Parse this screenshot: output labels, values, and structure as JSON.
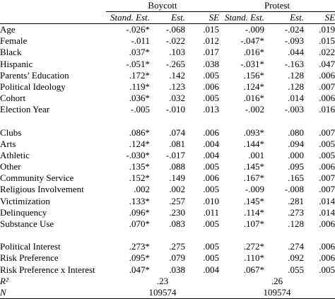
{
  "groups": {
    "boycott": "Boycott",
    "protest": "Protest"
  },
  "subheaders": [
    "Stand. Est.",
    "Est.",
    "SE",
    "Stand. Est.",
    "Est.",
    "SE"
  ],
  "block1": [
    {
      "label": "Age",
      "b_std": "-.026*",
      "b_est": "-.068",
      "b_se": ".015",
      "p_std": "-.009",
      "p_est": "-.024",
      "p_se": ".019"
    },
    {
      "label": "Female",
      "b_std": "-.011",
      "b_est": "-.022",
      "b_se": ".012",
      "p_std": "-.047*",
      "p_est": "-.093",
      "p_se": ".015"
    },
    {
      "label": "Black",
      "b_std": ".037*",
      "b_est": ".103",
      "b_se": ".017",
      "p_std": ".016*",
      "p_est": ".044",
      "p_se": ".022"
    },
    {
      "label": "Hispanic",
      "b_std": "-.051*",
      "b_est": "-.265",
      "b_se": ".038",
      "p_std": "-.031*",
      "p_est": "-.163",
      "p_se": ".047"
    },
    {
      "label": "Parents’ Education",
      "b_std": ".172*",
      "b_est": ".142",
      "b_se": ".005",
      "p_std": ".156*",
      "p_est": ".128",
      "p_se": ".006"
    },
    {
      "label": "Political Ideology",
      "b_std": ".119*",
      "b_est": ".123",
      "b_se": ".006",
      "p_std": ".124*",
      "p_est": ".128",
      "p_se": ".007"
    },
    {
      "label": "Cohort",
      "b_std": ".036*",
      "b_est": ".032",
      "b_se": ".005",
      "p_std": ".016*",
      "p_est": ".014",
      "p_se": ".006"
    },
    {
      "label": "Election Year",
      "b_std": "-.005",
      "b_est": "-.010",
      "b_se": ".013",
      "p_std": "-.002",
      "p_est": "-.003",
      "p_se": ".016"
    }
  ],
  "block2": [
    {
      "label": "Clubs",
      "b_std": ".086*",
      "b_est": ".074",
      "b_se": ".006",
      "p_std": ".093*",
      "p_est": ".080",
      "p_se": ".007"
    },
    {
      "label": "Arts",
      "b_std": ".124*",
      "b_est": ".081",
      "b_se": ".004",
      "p_std": ".144*",
      "p_est": ".094",
      "p_se": ".005"
    },
    {
      "label": "Athletic",
      "b_std": "-.030*",
      "b_est": "-.017",
      "b_se": ".004",
      "p_std": ".001",
      "p_est": ".000",
      "p_se": ".005"
    },
    {
      "label": "Other",
      "b_std": ".135*",
      "b_est": ".088",
      "b_se": ".005",
      "p_std": ".145*",
      "p_est": ".095",
      "p_se": ".006"
    },
    {
      "label": "Community Service",
      "b_std": ".152*",
      "b_est": ".149",
      "b_se": ".006",
      "p_std": ".167*",
      "p_est": ".165",
      "p_se": ".007"
    },
    {
      "label": "Religious Involvement",
      "b_std": ".002",
      "b_est": ".002",
      "b_se": ".005",
      "p_std": "-.009",
      "p_est": "-.008",
      "p_se": ".007"
    },
    {
      "label": "Victimization",
      "b_std": ".133*",
      "b_est": ".257",
      "b_se": ".010",
      "p_std": ".145*",
      "p_est": ".281",
      "p_se": ".014"
    },
    {
      "label": "Delinquency",
      "b_std": ".096*",
      "b_est": ".230",
      "b_se": ".011",
      "p_std": ".114*",
      "p_est": ".273",
      "p_se": ".014"
    },
    {
      "label": "Substance Use",
      "b_std": ".070*",
      "b_est": ".083",
      "b_se": ".005",
      "p_std": ".107*",
      "p_est": ".128",
      "p_se": ".006"
    }
  ],
  "block3": [
    {
      "label": "Political Interest",
      "b_std": ".273*",
      "b_est": ".275",
      "b_se": ".005",
      "p_std": ".272*",
      "p_est": ".274",
      "p_se": ".006"
    },
    {
      "label": "Risk Preference",
      "b_std": ".095*",
      "b_est": ".079",
      "b_se": ".005",
      "p_std": ".110*",
      "p_est": ".092",
      "p_se": ".006"
    },
    {
      "label": "Risk Preference x Interest",
      "b_std": ".047*",
      "b_est": ".038",
      "b_se": ".004",
      "p_std": ".067*",
      "p_est": ".055",
      "p_se": ".005"
    }
  ],
  "fit": {
    "r2_label": "R²",
    "r2_boycott": ".23",
    "r2_protest": ".26",
    "n_label": "N",
    "n_boycott": "109574",
    "n_protest": "109574"
  }
}
